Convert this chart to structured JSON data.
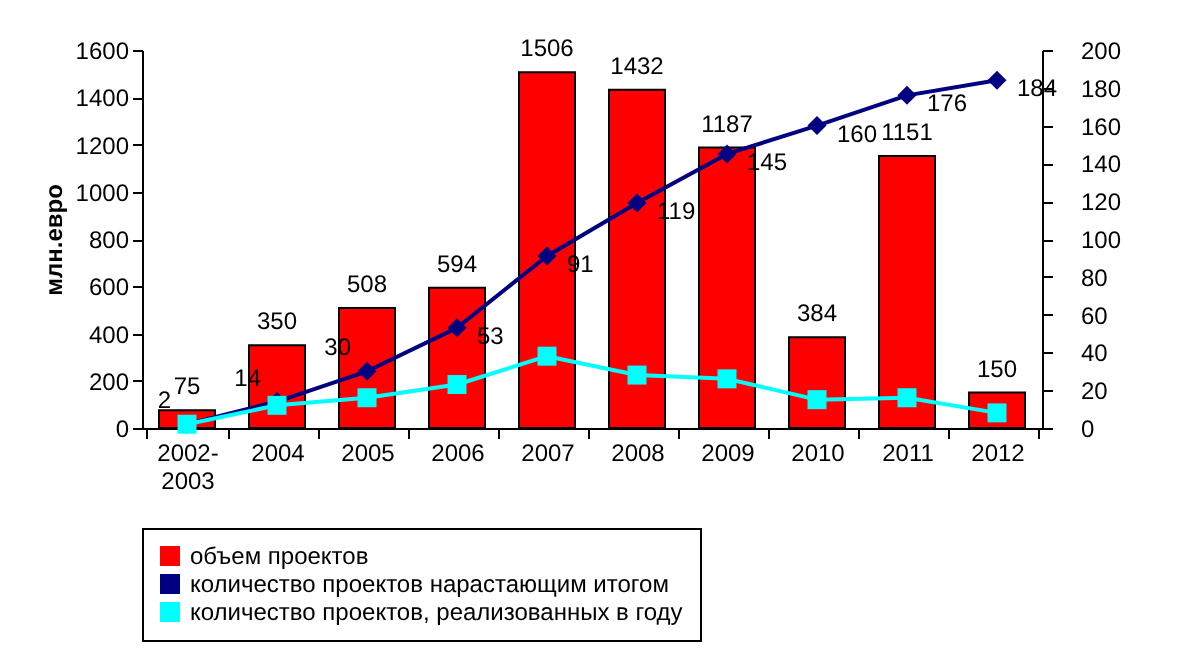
{
  "chart_data": {
    "type": "bar",
    "ylabel": "млн.евро",
    "categories": [
      "2002-2003",
      "2004",
      "2005",
      "2006",
      "2007",
      "2008",
      "2009",
      "2010",
      "2011",
      "2012"
    ],
    "series": [
      {
        "name": "объем проектов",
        "color": "#ff0000",
        "values": [
          75,
          350,
          508,
          594,
          1506,
          1432,
          1187,
          384,
          1151,
          150
        ],
        "value_labels": [
          "75",
          "350",
          "508",
          "594",
          "1506",
          "1432",
          "1187",
          "384",
          "1151",
          "150"
        ]
      },
      {
        "name": "количество проектов нарастающим итогом",
        "type": "line",
        "axis": "y2",
        "color": "#000080",
        "marker": "diamond",
        "values": [
          2,
          14,
          30,
          53,
          91,
          119,
          145,
          160,
          176,
          184
        ],
        "value_labels": [
          "2",
          "14",
          "30",
          "53",
          "91",
          "119",
          "145",
          "160",
          "176",
          "184"
        ]
      },
      {
        "name": "количество проектов, реализованных в году",
        "type": "line",
        "axis": "y2",
        "color": "#00ffff",
        "marker": "square",
        "values": [
          2,
          12,
          16,
          23,
          38,
          28,
          26,
          15,
          16,
          8
        ]
      }
    ],
    "ylim": [
      0,
      1600
    ],
    "yticks": [
      0,
      200,
      400,
      600,
      800,
      1000,
      1200,
      1400,
      1600
    ],
    "y2lim": [
      0,
      200
    ],
    "y2ticks": [
      0,
      20,
      40,
      60,
      80,
      100,
      120,
      140,
      160,
      180,
      200
    ],
    "grid": false,
    "legend": "bottom",
    "line_style": "solid"
  }
}
